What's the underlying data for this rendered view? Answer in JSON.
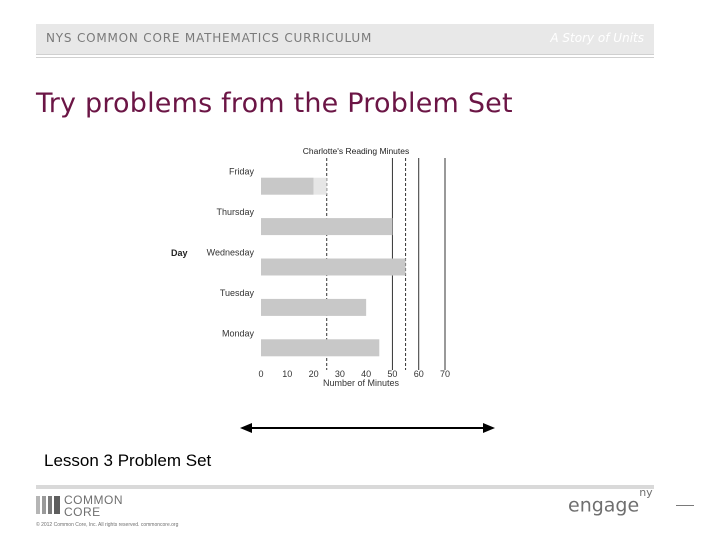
{
  "header": {
    "curriculum": "NYS COMMON CORE MATHEMATICS CURRICULUM",
    "series": "A Story of Units"
  },
  "slide": {
    "title": "Try problems from the Problem Set",
    "caption": "Lesson 3 Problem Set"
  },
  "chart_data": {
    "type": "bar",
    "orientation": "horizontal",
    "title": "Charlotte's Reading Minutes",
    "xlabel": "Number of Minutes",
    "ylabel": "Day",
    "categories": [
      "Friday",
      "Thursday",
      "Wednesday",
      "Tuesday",
      "Monday"
    ],
    "values": [
      20,
      50,
      55,
      40,
      45
    ],
    "xlim": [
      0,
      70
    ],
    "xticks": [
      "0",
      "10",
      "20",
      "30",
      "40",
      "50",
      "60",
      "70"
    ],
    "faded_extension": {
      "category": "Friday",
      "from": 20,
      "to": 25
    },
    "dashed_lines_at": [
      25,
      55
    ],
    "solid_lines_at": [
      50,
      60,
      70
    ],
    "bar_color": "#c8c8c8",
    "grid": false
  },
  "footer": {
    "logo_line1": "COMMON",
    "logo_line2": "CORE",
    "copyright": "© 2012 Common Core, Inc. All rights reserved. commoncore.org",
    "brand": "engage",
    "brand_sup": "ny"
  },
  "colors": {
    "title": "#6b1545",
    "header_bg": "#e8e8e8",
    "header_text": "#7a7a7a"
  }
}
